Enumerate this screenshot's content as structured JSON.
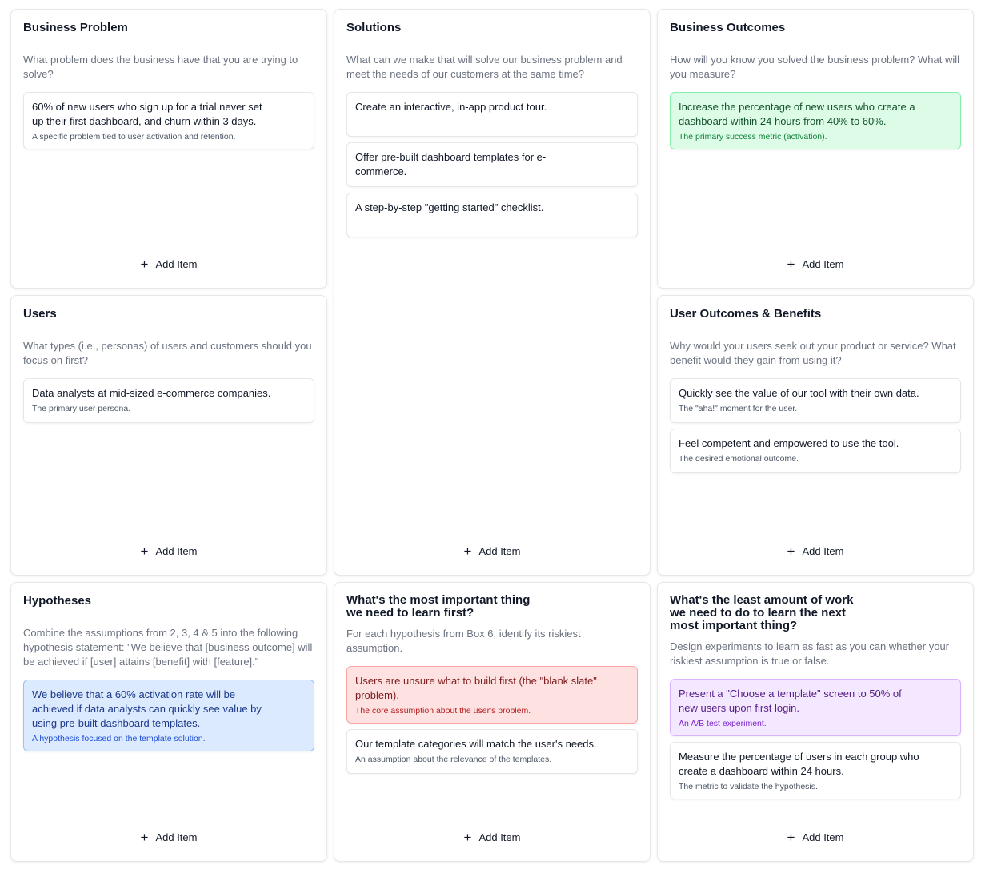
{
  "add_item_label": "Add Item",
  "icons": {
    "add": "plus-icon"
  },
  "variant_colors": {
    "green": "#dcfce7",
    "red": "#fee2e2",
    "blue": "#dbeafe",
    "purple": "#f3e8ff"
  },
  "boxes": [
    {
      "id": "business-problem",
      "title": "Business Problem",
      "description": "What problem does the business have that you are trying to solve?",
      "items": [
        {
          "text": "60% of new users who sign up for a trial never set up their first dashboard, and churn within 3 days.",
          "note": "A specific problem tied to user activation and retention.",
          "variant": "default"
        }
      ]
    },
    {
      "id": "solutions",
      "title": "Solutions",
      "description": "What can we make that will solve our business problem and meet the needs of our customers at the same time?",
      "items": [
        {
          "text": "Create an interactive, in-app product tour.",
          "note": "",
          "variant": "default"
        },
        {
          "text": "Offer pre-built dashboard templates for e-commerce.",
          "note": "",
          "variant": "default"
        },
        {
          "text": "A step-by-step \"getting started\" checklist.",
          "note": "",
          "variant": "default"
        }
      ]
    },
    {
      "id": "business-outcomes",
      "title": "Business Outcomes",
      "description": "How will you know you solved the business problem? What will you measure?",
      "items": [
        {
          "text": "Increase the percentage of new users who create a dashboard within 24 hours from 40% to 60%.",
          "note": "The primary success metric (activation).",
          "variant": "green"
        }
      ]
    },
    {
      "id": "users",
      "title": "Users",
      "description": "What types (i.e., personas) of users and customers should you focus on first?",
      "items": [
        {
          "text": "Data analysts at mid-sized e-commerce companies.",
          "note": "The primary user persona.",
          "variant": "default"
        }
      ]
    },
    {
      "id": "user-outcomes",
      "title": "User Outcomes & Benefits",
      "description": "Why would your users seek out your product or service? What benefit would they gain from using it?",
      "items": [
        {
          "text": "Quickly see the value of our tool with their own data.",
          "note": "The \"aha!\" moment for the user.",
          "variant": "default"
        },
        {
          "text": "Feel competent and empowered to use the tool.",
          "note": "The desired emotional outcome.",
          "variant": "default"
        }
      ]
    },
    {
      "id": "hypotheses",
      "title": "Hypotheses",
      "description": "Combine the assumptions from 2, 3, 4 & 5 into the following hypothesis statement: \"We believe that [business outcome] will be achieved if [user] attains [benefit] with [feature].\"",
      "items": [
        {
          "text": "We believe that a 60% activation rate will be achieved if data analysts can quickly see value by using pre-built dashboard templates.",
          "note": "A hypothesis focused on the template solution.",
          "variant": "blue"
        }
      ]
    },
    {
      "id": "learn-first",
      "title": "What's the most important thing\nwe need to learn first?",
      "description": "For each hypothesis from Box 6, identify its riskiest assumption.",
      "items": [
        {
          "text": "Users are unsure what to build first (the \"blank slate\" problem).",
          "note": "The core assumption about the user's problem.",
          "variant": "red"
        },
        {
          "text": "Our template categories will match the user's needs.",
          "note": "An assumption about the relevance of the templates.",
          "variant": "default"
        }
      ]
    },
    {
      "id": "least-work",
      "title": "What's the least amount of work\nwe need to do to learn the next\nmost important thing?",
      "description": "Design experiments to learn as fast as you can whether your riskiest assumption is true or false.",
      "items": [
        {
          "text": "Present a \"Choose a template\" screen to 50% of new users upon first login.",
          "note": "An A/B test experiment.",
          "variant": "purple"
        },
        {
          "text": "Measure the percentage of users in each group who create a dashboard within 24 hours.",
          "note": "The metric to validate the hypothesis.",
          "variant": "default"
        }
      ]
    }
  ]
}
